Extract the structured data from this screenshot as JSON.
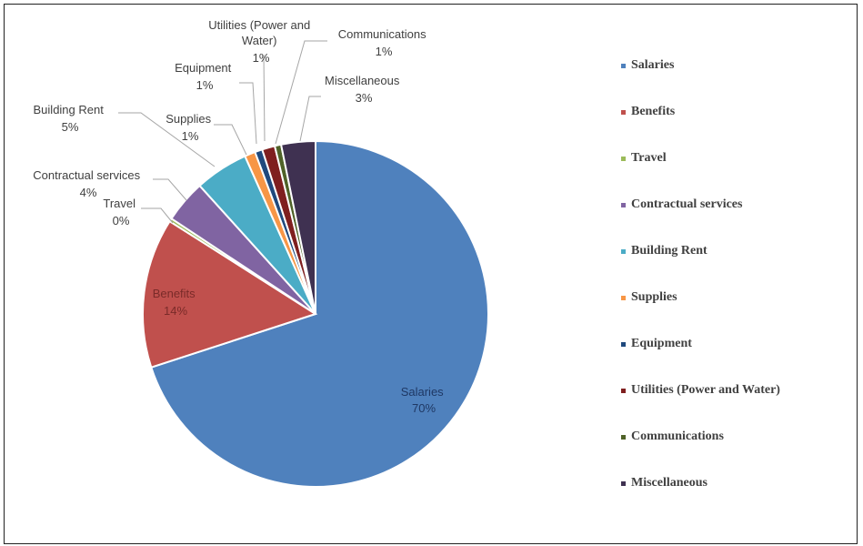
{
  "chart_data": {
    "type": "pie",
    "slices": [
      {
        "name": "Salaries",
        "value": 70,
        "label": "70%",
        "color": "#4f81bd"
      },
      {
        "name": "Benefits",
        "value": 14,
        "label": "14%",
        "color": "#c0504d"
      },
      {
        "name": "Travel",
        "value": 0.3,
        "label": "0%",
        "color": "#9bbb59"
      },
      {
        "name": "Contractual services",
        "value": 4,
        "label": "4%",
        "color": "#8064a2"
      },
      {
        "name": "Building Rent",
        "value": 5,
        "label": "5%",
        "color": "#4bacc6"
      },
      {
        "name": "Supplies",
        "value": 1,
        "label": "1%",
        "color": "#f79646"
      },
      {
        "name": "Equipment",
        "value": 0.7,
        "label": "1%",
        "color": "#1f497d"
      },
      {
        "name": "Utilities (Power and Water)",
        "value": 1.2,
        "label": "1%",
        "color": "#7f1f1f"
      },
      {
        "name": "Communications",
        "value": 0.6,
        "label": "1%",
        "color": "#4f6228"
      },
      {
        "name": "Miscellaneous",
        "value": 3.2,
        "label": "3%",
        "color": "#3f3151"
      }
    ],
    "legend_position": "right"
  },
  "labels": {
    "salaries": [
      "Salaries",
      "70%"
    ],
    "benefits": [
      "Benefits",
      "14%"
    ],
    "travel": [
      "Travel",
      "0%"
    ],
    "contractual": [
      "Contractual services",
      "4%"
    ],
    "building_rent": [
      "Building Rent",
      "5%"
    ],
    "supplies": [
      "Supplies",
      "1%"
    ],
    "equipment": [
      "Equipment",
      "1%"
    ],
    "utilities": [
      "Utilities (Power and",
      "Water)",
      "1%"
    ],
    "communications": [
      "Communications",
      "1%"
    ],
    "miscellaneous": [
      "Miscellaneous",
      "3%"
    ]
  },
  "legend": [
    "Salaries",
    "Benefits",
    "Travel",
    "Contractual services",
    "Building Rent",
    "Supplies",
    "Equipment",
    "Utilities (Power and Water)",
    "Communications",
    "Miscellaneous"
  ]
}
